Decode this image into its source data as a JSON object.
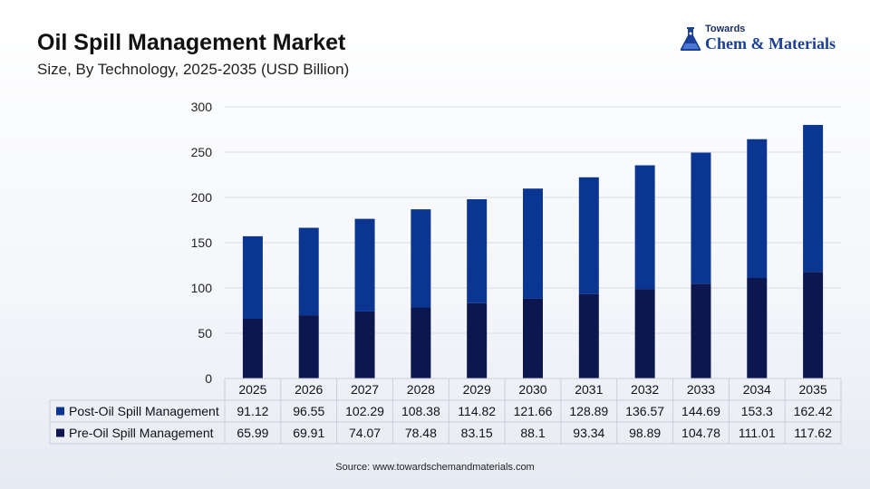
{
  "header": {
    "title": "Oil Spill Management Market",
    "subtitle": "Size, By Technology, 2025-2035 (USD Billion)"
  },
  "logo": {
    "top": "Towards",
    "main": "Chem & Materials",
    "icon": "flask-icon"
  },
  "source": "Source: www.towardschemandmaterials.com",
  "colors": {
    "post": "#0a3590",
    "pre": "#0d174f",
    "grid": "#d9dde5"
  },
  "chart_data": {
    "type": "bar",
    "stacked": true,
    "categories": [
      "2025",
      "2026",
      "2027",
      "2028",
      "2029",
      "2030",
      "2031",
      "2032",
      "2033",
      "2034",
      "2035"
    ],
    "series": [
      {
        "name": "Post-Oil Spill Management",
        "values": [
          91.12,
          96.55,
          102.29,
          108.38,
          114.82,
          121.66,
          128.89,
          136.57,
          144.69,
          153.3,
          162.42
        ]
      },
      {
        "name": "Pre-Oil Spill Management",
        "values": [
          65.99,
          69.91,
          74.07,
          78.48,
          83.15,
          88.1,
          93.34,
          98.89,
          104.78,
          111.01,
          117.62
        ]
      }
    ],
    "yticks": [
      "0",
      "50",
      "100",
      "150",
      "200",
      "250",
      "300"
    ],
    "ylim": [
      0,
      300
    ],
    "grid": true,
    "legend": "data-table"
  }
}
